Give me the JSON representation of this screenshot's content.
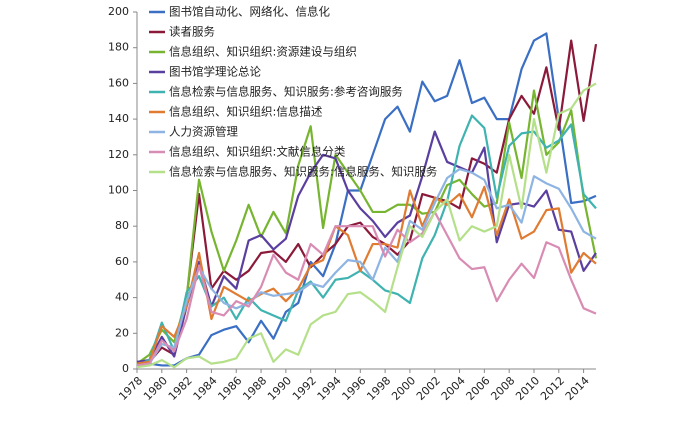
{
  "chart_data": {
    "type": "line",
    "x": [
      1978,
      1979,
      1980,
      1981,
      1982,
      1983,
      1984,
      1985,
      1986,
      1987,
      1988,
      1989,
      1990,
      1991,
      1992,
      1993,
      1994,
      1995,
      1996,
      1997,
      1998,
      1999,
      2000,
      2001,
      2002,
      2003,
      2004,
      2005,
      2006,
      2007,
      2008,
      2009,
      2010,
      2011,
      2012,
      2013,
      2014,
      2015
    ],
    "xlim": [
      1978,
      2015
    ],
    "xticks": [
      1978,
      1980,
      1982,
      1984,
      1986,
      1988,
      1990,
      1992,
      1994,
      1996,
      1998,
      2000,
      2002,
      2004,
      2006,
      2008,
      2010,
      2012,
      2014
    ],
    "ylim": [
      0,
      200
    ],
    "yticks": [
      0,
      20,
      40,
      60,
      80,
      100,
      120,
      140,
      160,
      180,
      200
    ],
    "legend": "upper left",
    "series": [
      {
        "name": "图书馆自动化、网络化、信息化",
        "color": "#3a6fc4",
        "values": [
          4,
          3,
          2,
          2,
          6,
          8,
          19,
          22,
          24,
          15,
          27,
          17,
          32,
          37,
          60,
          52,
          70,
          100,
          100,
          120,
          140,
          147,
          133,
          161,
          150,
          153,
          173,
          149,
          152,
          140,
          140,
          168,
          184,
          188,
          140,
          93,
          94,
          97
        ]
      },
      {
        "name": "读者服务",
        "color": "#8b1a3a",
        "values": [
          2,
          4,
          12,
          8,
          40,
          98,
          45,
          55,
          50,
          55,
          65,
          66,
          60,
          70,
          57,
          64,
          70,
          80,
          82,
          74,
          70,
          64,
          72,
          98,
          96,
          94,
          90,
          118,
          115,
          110,
          140,
          153,
          143,
          169,
          134,
          184,
          139,
          182
        ]
      },
      {
        "name": "信息组织、知识组织:资源建设与组织",
        "color": "#77b531",
        "values": [
          3,
          8,
          22,
          15,
          40,
          106,
          77,
          55,
          72,
          92,
          74,
          88,
          76,
          114,
          136,
          79,
          120,
          110,
          100,
          88,
          88,
          92,
          92,
          87,
          88,
          103,
          106,
          98,
          91,
          93,
          138,
          107,
          156,
          120,
          127,
          145,
          96,
          62
        ]
      },
      {
        "name": "图书馆学理论总论",
        "color": "#5b3fa0",
        "values": [
          4,
          5,
          18,
          7,
          35,
          60,
          35,
          52,
          45,
          72,
          75,
          67,
          73,
          97,
          110,
          120,
          118,
          100,
          90,
          83,
          74,
          82,
          86,
          108,
          133,
          116,
          113,
          110,
          124,
          71,
          92,
          93,
          91,
          100,
          78,
          77,
          55,
          65
        ]
      },
      {
        "name": "信息检索与信息服务、知识服务:参考咨询服务",
        "color": "#3fb3b0",
        "values": [
          2,
          5,
          26,
          10,
          43,
          52,
          35,
          40,
          28,
          40,
          33,
          30,
          27,
          44,
          49,
          40,
          50,
          51,
          55,
          50,
          44,
          42,
          37,
          62,
          75,
          94,
          125,
          142,
          135,
          96,
          125,
          132,
          133,
          124,
          128,
          137,
          98,
          90
        ]
      },
      {
        "name": "信息组织、知识组织:信息描述",
        "color": "#e07b32",
        "values": [
          3,
          4,
          24,
          18,
          35,
          65,
          28,
          46,
          42,
          38,
          42,
          45,
          38,
          45,
          58,
          61,
          80,
          75,
          55,
          70,
          70,
          68,
          100,
          80,
          96,
          92,
          98,
          85,
          102,
          75,
          95,
          73,
          77,
          89,
          90,
          54,
          65,
          59
        ]
      },
      {
        "name": "人力资源管理",
        "color": "#8db4e2",
        "values": [
          2,
          3,
          14,
          12,
          38,
          57,
          45,
          37,
          34,
          37,
          43,
          41,
          42,
          43,
          48,
          46,
          54,
          61,
          60,
          50,
          68,
          60,
          83,
          78,
          93,
          107,
          112,
          110,
          106,
          90,
          92,
          82,
          108,
          104,
          101,
          90,
          77,
          73
        ]
      },
      {
        "name": "信息组织、知识组织:文献信息分类",
        "color": "#d98cb3",
        "values": [
          2,
          3,
          16,
          10,
          28,
          58,
          32,
          30,
          38,
          35,
          46,
          64,
          54,
          50,
          70,
          64,
          80,
          80,
          80,
          80,
          63,
          78,
          71,
          76,
          88,
          75,
          62,
          56,
          57,
          38,
          50,
          59,
          51,
          71,
          68,
          50,
          34,
          31
        ]
      },
      {
        "name": "信息检索与信息服务、知识服务:信息服务、知识服务",
        "color": "#b5e08a",
        "values": [
          1,
          2,
          5,
          1,
          6,
          7,
          3,
          4,
          6,
          17,
          20,
          4,
          11,
          8,
          25,
          30,
          32,
          42,
          43,
          38,
          32,
          57,
          80,
          74,
          88,
          95,
          72,
          80,
          77,
          80,
          120,
          90,
          140,
          110,
          143,
          146,
          156,
          160
        ]
      }
    ]
  }
}
